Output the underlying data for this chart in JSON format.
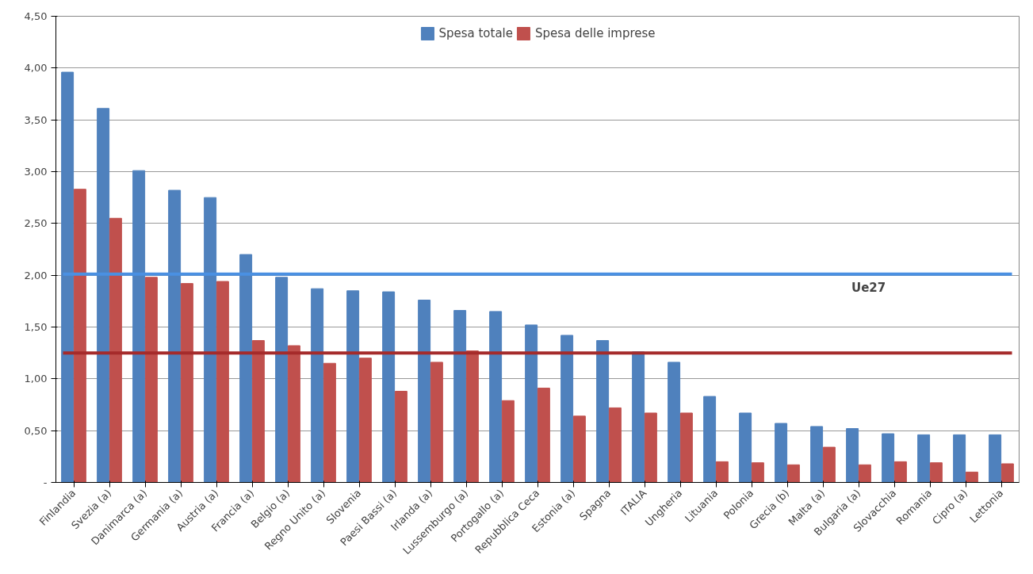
{
  "chart_data": {
    "type": "bar",
    "categories": [
      "Finlandia",
      "Svezia (a)",
      "Danimarca (a)",
      "Germania (a)",
      "Austria (a)",
      "Francia (a)",
      "Belgio (a)",
      "Regno Unito (a)",
      "Slovenia",
      "Paesi Bassi (a)",
      "Irlanda (a)",
      "Lussemburgo (a)",
      "Portogallo (a)",
      "Repubblica Ceca",
      "Estonia (a)",
      "Spagna",
      "ITALIA",
      "Ungheria",
      "Lituania",
      "Polonia",
      "Grecia (b)",
      "Malta (a)",
      "Bulgaria (a)",
      "Slovacchia",
      "Romania",
      "Cipro (a)",
      "Lettonia"
    ],
    "series": [
      {
        "name": "Spesa totale",
        "color": "#4f81bd",
        "values": [
          3.96,
          3.61,
          3.01,
          2.82,
          2.75,
          2.2,
          1.98,
          1.87,
          1.85,
          1.84,
          1.76,
          1.66,
          1.65,
          1.52,
          1.42,
          1.37,
          1.26,
          1.16,
          0.83,
          0.67,
          0.57,
          0.54,
          0.52,
          0.47,
          0.46,
          0.46,
          0.46
        ]
      },
      {
        "name": "Spesa delle imprese",
        "color": "#c0504d",
        "values": [
          2.83,
          2.55,
          1.98,
          1.92,
          1.94,
          1.37,
          1.32,
          1.15,
          1.2,
          0.88,
          1.16,
          1.27,
          0.79,
          0.91,
          0.64,
          0.72,
          0.67,
          0.67,
          0.2,
          0.19,
          0.17,
          0.34,
          0.17,
          0.2,
          0.19,
          0.1,
          0.18
        ]
      }
    ],
    "ylim": [
      0,
      4.5
    ],
    "yticks": [
      {
        "value": 0,
        "label": "-"
      },
      {
        "value": 0.5,
        "label": "0,50"
      },
      {
        "value": 1,
        "label": "1,00"
      },
      {
        "value": 1.5,
        "label": "1,50"
      },
      {
        "value": 2,
        "label": "2,00"
      },
      {
        "value": 2.5,
        "label": "2,50"
      },
      {
        "value": 3,
        "label": "3,00"
      },
      {
        "value": 3.5,
        "label": "3,50"
      },
      {
        "value": 4,
        "label": "4,00"
      },
      {
        "value": 4.5,
        "label": "4,50"
      }
    ],
    "ref_lines": [
      {
        "axis": "y",
        "value": 2.01,
        "label": "Ue27",
        "color": "#4a90e2"
      },
      {
        "axis": "y",
        "value": 1.25,
        "label": null,
        "color": "#a52a2a"
      }
    ],
    "grid": "y",
    "legend": "top"
  }
}
